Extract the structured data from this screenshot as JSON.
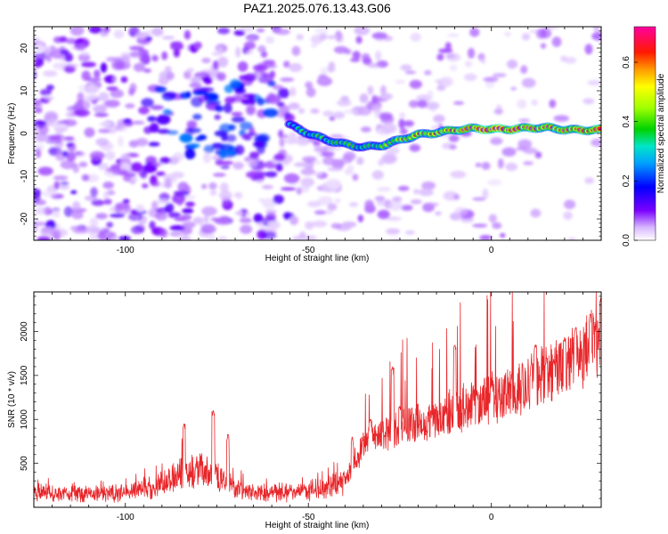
{
  "title": "PAZ1.2025.076.13.43.G06",
  "chart_data": [
    {
      "type": "heatmap",
      "xlabel": "Height of straight line (km)",
      "ylabel": "Frequency (Hz)",
      "xlim": [
        -125,
        30
      ],
      "ylim": [
        -25,
        25
      ],
      "xticks": [
        -100,
        -50,
        0
      ],
      "yticks": [
        -20,
        -10,
        0,
        10,
        20
      ],
      "colorbar": {
        "label": "Normalized spectral amplitude",
        "range": [
          0,
          0.72
        ],
        "ticks": [
          0.0,
          0.2,
          0.4,
          0.6
        ],
        "colormap": "rainbow (white-purple-blue-cyan-green-yellow-orange-red-magenta)"
      },
      "ridge": {
        "points": [
          [
            -55,
            2
          ],
          [
            -50,
            0
          ],
          [
            -45,
            -1.5
          ],
          [
            -40,
            -2.5
          ],
          [
            -35,
            -3.2
          ],
          [
            -30,
            -2.8
          ],
          [
            -25,
            -1.5
          ],
          [
            -20,
            -0.3
          ],
          [
            -15,
            0.2
          ],
          [
            -10,
            0.8
          ],
          [
            -5,
            1.2
          ],
          [
            0,
            1.0
          ],
          [
            5,
            1.0
          ],
          [
            10,
            1.3
          ],
          [
            15,
            1.4
          ],
          [
            20,
            0.9
          ],
          [
            25,
            0.8
          ],
          [
            30,
            0.9
          ]
        ],
        "amplitude": [
          0.25,
          0.3,
          0.3,
          0.35,
          0.3,
          0.35,
          0.4,
          0.45,
          0.45,
          0.5,
          0.55,
          0.65,
          0.6,
          0.55,
          0.5,
          0.5,
          0.55,
          0.55
        ]
      },
      "noise_cluster": {
        "x_range": [
          -95,
          -60
        ],
        "y_range": [
          -5,
          12
        ],
        "peak_amplitude": 0.25
      }
    },
    {
      "type": "line",
      "xlabel": "Height of straight line (km)",
      "ylabel": "SNR (10 * v/v)",
      "xlim": [
        -125,
        30
      ],
      "ylim": [
        0,
        2450
      ],
      "xticks": [
        -100,
        -50,
        0
      ],
      "yticks": [
        500,
        1000,
        1500,
        2000
      ],
      "color": "#e8262a",
      "envelope": {
        "x": [
          -125,
          -110,
          -100,
          -90,
          -85,
          -80,
          -75,
          -70,
          -65,
          -60,
          -55,
          -50,
          -45,
          -40,
          -37,
          -35,
          -30,
          -25,
          -20,
          -15,
          -10,
          -5,
          0,
          5,
          10,
          15,
          20,
          25,
          30
        ],
        "y": [
          170,
          150,
          170,
          250,
          380,
          420,
          350,
          220,
          160,
          170,
          170,
          190,
          220,
          300,
          550,
          700,
          850,
          900,
          950,
          1000,
          1100,
          1150,
          1250,
          1300,
          1400,
          1500,
          1600,
          1750,
          1900
        ]
      },
      "spikes": [
        [
          -84,
          950
        ],
        [
          -76,
          1100
        ],
        [
          -72,
          830
        ],
        [
          -38,
          800
        ],
        [
          -33,
          1000
        ],
        [
          -27,
          1600
        ],
        [
          -25,
          1150
        ],
        [
          -10,
          1850
        ],
        [
          -4,
          1300
        ],
        [
          0,
          1400
        ],
        [
          12,
          1850
        ],
        [
          15,
          1700
        ],
        [
          20,
          1920
        ],
        [
          23,
          2050
        ],
        [
          27,
          2200
        ],
        [
          30,
          2380
        ]
      ]
    }
  ]
}
